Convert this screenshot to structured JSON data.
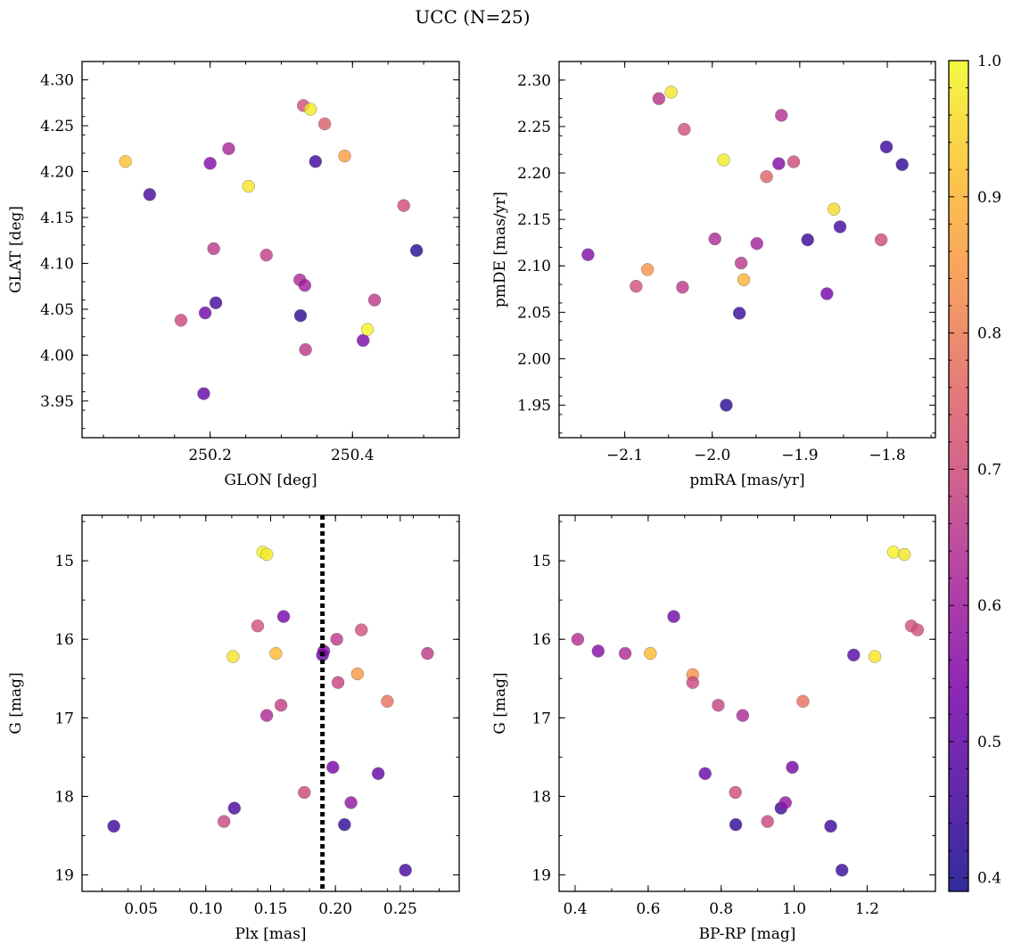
{
  "chart_data": {
    "title": "UCC (N=25)",
    "colormap": "plasma",
    "colorbar": {
      "range": [
        0.39,
        1.0
      ],
      "ticks": [
        "0.4",
        "0.5",
        "0.6",
        "0.7",
        "0.8",
        "0.9",
        "1.0"
      ]
    },
    "panels": [
      {
        "type": "scatter",
        "xlabel": "GLON [deg]",
        "ylabel": "GLAT [deg]",
        "xlim": [
          250.02,
          250.55
        ],
        "ylim": [
          3.91,
          4.32
        ],
        "xticks": [
          "250.2",
          "250.4"
        ],
        "yticks": [
          "3.95",
          "4.00",
          "4.05",
          "4.10",
          "4.15",
          "4.20",
          "4.25",
          "4.30"
        ],
        "points": [
          {
            "x": 250.081,
            "y": 4.211,
            "c": 0.92
          },
          {
            "x": 250.115,
            "y": 4.175,
            "c": 0.46
          },
          {
            "x": 250.159,
            "y": 4.038,
            "c": 0.69
          },
          {
            "x": 250.191,
            "y": 3.958,
            "c": 0.5
          },
          {
            "x": 250.193,
            "y": 4.046,
            "c": 0.52
          },
          {
            "x": 250.2,
            "y": 4.209,
            "c": 0.55
          },
          {
            "x": 250.205,
            "y": 4.116,
            "c": 0.66
          },
          {
            "x": 250.208,
            "y": 4.057,
            "c": 0.46
          },
          {
            "x": 250.226,
            "y": 4.225,
            "c": 0.62
          },
          {
            "x": 250.254,
            "y": 4.184,
            "c": 0.97
          },
          {
            "x": 250.279,
            "y": 4.109,
            "c": 0.67
          },
          {
            "x": 250.326,
            "y": 4.082,
            "c": 0.63
          },
          {
            "x": 250.327,
            "y": 4.043,
            "c": 0.43
          },
          {
            "x": 250.331,
            "y": 4.272,
            "c": 0.71
          },
          {
            "x": 250.333,
            "y": 4.076,
            "c": 0.6
          },
          {
            "x": 250.334,
            "y": 4.006,
            "c": 0.66
          },
          {
            "x": 250.341,
            "y": 4.268,
            "c": 0.98
          },
          {
            "x": 250.348,
            "y": 4.211,
            "c": 0.45
          },
          {
            "x": 250.361,
            "y": 4.252,
            "c": 0.74
          },
          {
            "x": 250.389,
            "y": 4.217,
            "c": 0.86
          },
          {
            "x": 250.415,
            "y": 4.016,
            "c": 0.54
          },
          {
            "x": 250.421,
            "y": 4.028,
            "c": 0.99
          },
          {
            "x": 250.431,
            "y": 4.06,
            "c": 0.66
          },
          {
            "x": 250.472,
            "y": 4.163,
            "c": 0.7
          },
          {
            "x": 250.49,
            "y": 4.114,
            "c": 0.42
          }
        ]
      },
      {
        "type": "scatter",
        "xlabel": "pmRA [mas/yr]",
        "ylabel": "pmDE [mas/yr]",
        "xlim": [
          -2.175,
          -1.745
        ],
        "ylim": [
          1.915,
          2.32
        ],
        "xticks": [
          "−2.1",
          "−2.0",
          "−1.9",
          "−1.8"
        ],
        "yticks": [
          "1.95",
          "2.00",
          "2.05",
          "2.10",
          "2.15",
          "2.20",
          "2.25",
          "2.30"
        ],
        "points": [
          {
            "x": -2.142,
            "y": 2.112,
            "c": 0.55
          },
          {
            "x": -2.087,
            "y": 2.078,
            "c": 0.71
          },
          {
            "x": -2.074,
            "y": 2.096,
            "c": 0.84
          },
          {
            "x": -2.061,
            "y": 2.28,
            "c": 0.65
          },
          {
            "x": -2.047,
            "y": 2.287,
            "c": 0.97
          },
          {
            "x": -2.034,
            "y": 2.077,
            "c": 0.66
          },
          {
            "x": -2.032,
            "y": 2.247,
            "c": 0.71
          },
          {
            "x": -1.997,
            "y": 2.129,
            "c": 0.63
          },
          {
            "x": -1.987,
            "y": 2.214,
            "c": 0.98
          },
          {
            "x": -1.984,
            "y": 1.95,
            "c": 0.42
          },
          {
            "x": -1.969,
            "y": 2.049,
            "c": 0.44
          },
          {
            "x": -1.967,
            "y": 2.103,
            "c": 0.66
          },
          {
            "x": -1.964,
            "y": 2.085,
            "c": 0.9
          },
          {
            "x": -1.949,
            "y": 2.124,
            "c": 0.61
          },
          {
            "x": -1.938,
            "y": 2.196,
            "c": 0.75
          },
          {
            "x": -1.924,
            "y": 2.21,
            "c": 0.55
          },
          {
            "x": -1.921,
            "y": 2.262,
            "c": 0.64
          },
          {
            "x": -1.907,
            "y": 2.212,
            "c": 0.7
          },
          {
            "x": -1.891,
            "y": 2.128,
            "c": 0.44
          },
          {
            "x": -1.869,
            "y": 2.07,
            "c": 0.53
          },
          {
            "x": -1.861,
            "y": 2.161,
            "c": 0.96
          },
          {
            "x": -1.854,
            "y": 2.142,
            "c": 0.46
          },
          {
            "x": -1.807,
            "y": 2.128,
            "c": 0.7
          },
          {
            "x": -1.801,
            "y": 2.228,
            "c": 0.45
          },
          {
            "x": -1.783,
            "y": 2.209,
            "c": 0.43
          }
        ]
      },
      {
        "type": "scatter",
        "xlabel": "Plx [mas]",
        "ylabel": "G [mag]",
        "xlim": [
          0.0045,
          0.2955
        ],
        "ylim": [
          14.42,
          19.21
        ],
        "y_inverted": true,
        "xticks": [
          "0.05",
          "0.10",
          "0.15",
          "0.20",
          "0.25"
        ],
        "yticks": [
          "15",
          "16",
          "17",
          "18",
          "19"
        ],
        "vline": {
          "x": 0.19,
          "style": "dotted",
          "color": "#000000"
        },
        "points": [
          {
            "x": 0.029,
            "y": 18.38,
            "c": 0.45
          },
          {
            "x": 0.114,
            "y": 18.32,
            "c": 0.69
          },
          {
            "x": 0.121,
            "y": 16.22,
            "c": 0.97
          },
          {
            "x": 0.122,
            "y": 18.15,
            "c": 0.46
          },
          {
            "x": 0.14,
            "y": 15.83,
            "c": 0.71
          },
          {
            "x": 0.144,
            "y": 14.89,
            "c": 0.99
          },
          {
            "x": 0.147,
            "y": 14.92,
            "c": 0.98
          },
          {
            "x": 0.147,
            "y": 16.97,
            "c": 0.63
          },
          {
            "x": 0.154,
            "y": 16.18,
            "c": 0.91
          },
          {
            "x": 0.158,
            "y": 16.84,
            "c": 0.67
          },
          {
            "x": 0.16,
            "y": 15.71,
            "c": 0.53
          },
          {
            "x": 0.176,
            "y": 17.95,
            "c": 0.69
          },
          {
            "x": 0.19,
            "y": 16.2,
            "c": 0.5
          },
          {
            "x": 0.191,
            "y": 16.15,
            "c": 0.55
          },
          {
            "x": 0.198,
            "y": 17.63,
            "c": 0.53
          },
          {
            "x": 0.201,
            "y": 16.0,
            "c": 0.66
          },
          {
            "x": 0.202,
            "y": 16.55,
            "c": 0.68
          },
          {
            "x": 0.207,
            "y": 18.36,
            "c": 0.43
          },
          {
            "x": 0.212,
            "y": 18.08,
            "c": 0.58
          },
          {
            "x": 0.217,
            "y": 16.44,
            "c": 0.85
          },
          {
            "x": 0.22,
            "y": 15.88,
            "c": 0.71
          },
          {
            "x": 0.233,
            "y": 17.71,
            "c": 0.5
          },
          {
            "x": 0.24,
            "y": 16.79,
            "c": 0.78
          },
          {
            "x": 0.254,
            "y": 18.94,
            "c": 0.46
          },
          {
            "x": 0.271,
            "y": 16.18,
            "c": 0.66
          }
        ]
      },
      {
        "type": "scatter",
        "xlabel": "BP-RP [mag]",
        "ylabel": "G [mag]",
        "xlim": [
          0.356,
          1.387
        ],
        "ylim": [
          14.42,
          19.21
        ],
        "y_inverted": true,
        "xticks": [
          "0.4",
          "0.6",
          "0.8",
          "1.0",
          "1.2"
        ],
        "yticks": [
          "15",
          "16",
          "17",
          "18",
          "19"
        ],
        "points": [
          {
            "x": 0.407,
            "y": 16.0,
            "c": 0.64
          },
          {
            "x": 0.463,
            "y": 16.15,
            "c": 0.55
          },
          {
            "x": 0.537,
            "y": 16.18,
            "c": 0.63
          },
          {
            "x": 0.606,
            "y": 16.18,
            "c": 0.91
          },
          {
            "x": 0.67,
            "y": 15.71,
            "c": 0.52
          },
          {
            "x": 0.722,
            "y": 16.45,
            "c": 0.84
          },
          {
            "x": 0.722,
            "y": 16.55,
            "c": 0.69
          },
          {
            "x": 0.756,
            "y": 17.71,
            "c": 0.51
          },
          {
            "x": 0.792,
            "y": 16.84,
            "c": 0.68
          },
          {
            "x": 0.839,
            "y": 17.95,
            "c": 0.7
          },
          {
            "x": 0.84,
            "y": 18.36,
            "c": 0.43
          },
          {
            "x": 0.859,
            "y": 16.97,
            "c": 0.63
          },
          {
            "x": 0.927,
            "y": 18.32,
            "c": 0.69
          },
          {
            "x": 0.964,
            "y": 18.15,
            "c": 0.45
          },
          {
            "x": 0.976,
            "y": 18.08,
            "c": 0.58
          },
          {
            "x": 0.995,
            "y": 17.63,
            "c": 0.53
          },
          {
            "x": 1.024,
            "y": 16.79,
            "c": 0.78
          },
          {
            "x": 1.1,
            "y": 18.38,
            "c": 0.45
          },
          {
            "x": 1.131,
            "y": 18.94,
            "c": 0.44
          },
          {
            "x": 1.163,
            "y": 16.2,
            "c": 0.48
          },
          {
            "x": 1.221,
            "y": 16.22,
            "c": 0.97
          },
          {
            "x": 1.272,
            "y": 14.89,
            "c": 0.99
          },
          {
            "x": 1.302,
            "y": 14.92,
            "c": 0.97
          },
          {
            "x": 1.321,
            "y": 15.83,
            "c": 0.71
          },
          {
            "x": 1.338,
            "y": 15.88,
            "c": 0.71
          }
        ]
      }
    ]
  }
}
